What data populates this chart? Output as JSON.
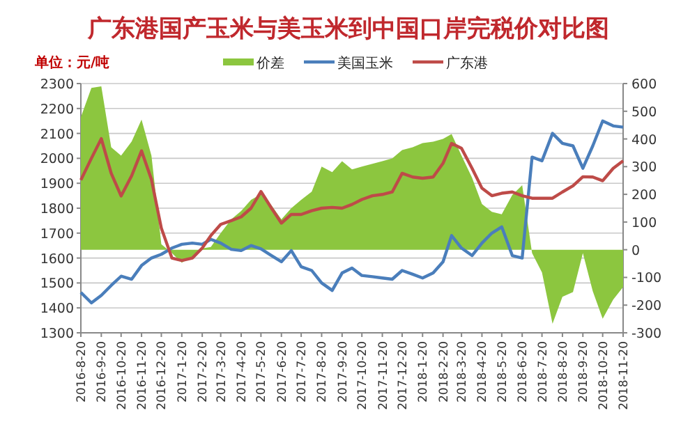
{
  "chart_data": {
    "type": "line",
    "title": "广东港国产玉米与美玉米到中国口岸完税价对比图",
    "ylabel": "单位：元/吨",
    "x": [
      "2016-08-20",
      "2016-09-05",
      "2016-09-20",
      "2016-10-05",
      "2016-10-20",
      "2016-11-05",
      "2016-11-20",
      "2016-12-05",
      "2016-12-20",
      "2017-01-05",
      "2017-01-20",
      "2017-02-05",
      "2017-02-20",
      "2017-03-05",
      "2017-03-20",
      "2017-04-05",
      "2017-04-20",
      "2017-05-05",
      "2017-05-20",
      "2017-06-05",
      "2017-06-20",
      "2017-07-05",
      "2017-07-20",
      "2017-08-05",
      "2017-08-20",
      "2017-09-05",
      "2017-09-20",
      "2017-10-05",
      "2017-10-20",
      "2017-11-05",
      "2017-11-20",
      "2017-12-05",
      "2017-12-20",
      "2018-01-05",
      "2018-01-20",
      "2018-02-05",
      "2018-02-20",
      "2018-03-05",
      "2018-03-20",
      "2018-04-05",
      "2018-04-20",
      "2018-05-05",
      "2018-05-20",
      "2018-06-05",
      "2018-06-20",
      "2018-07-05",
      "2018-07-20",
      "2018-08-05",
      "2018-08-20",
      "2018-09-05",
      "2018-09-20",
      "2018-10-05",
      "2018-10-20",
      "2018-11-05",
      "2018-11-20"
    ],
    "series": [
      {
        "name": "价差",
        "type": "area",
        "axis": "y2",
        "color": "#8cc63f",
        "values": [
          479,
          584,
          590,
          370,
          340,
          391,
          470,
          340,
          20,
          -12,
          -47,
          -25,
          5,
          10,
          60,
          110,
          140,
          180,
          200,
          160,
          110,
          150,
          180,
          210,
          300,
          280,
          320,
          290,
          300,
          310,
          320,
          330,
          360,
          370,
          385,
          390,
          400,
          418,
          340,
          260,
          165,
          137,
          128,
          198,
          233,
          -12,
          -82,
          -267,
          -170,
          -153,
          -12,
          -150,
          -249,
          -180,
          -135
        ]
      },
      {
        "name": "美国玉米",
        "type": "line",
        "color": "#4a7ebb",
        "values": [
          1462,
          1420,
          1450,
          1490,
          1527,
          1515,
          1570,
          1600,
          1615,
          1640,
          1655,
          1660,
          1655,
          1675,
          1660,
          1635,
          1630,
          1650,
          1637,
          1610,
          1585,
          1630,
          1565,
          1550,
          1500,
          1470,
          1540,
          1560,
          1530,
          1525,
          1520,
          1515,
          1550,
          1535,
          1520,
          1540,
          1585,
          1690,
          1640,
          1610,
          1660,
          1700,
          1725,
          1610,
          1600,
          2005,
          1990,
          2100,
          2060,
          2050,
          1960,
          2050,
          2150,
          2130,
          2125
        ]
      },
      {
        "name": "广东港",
        "type": "line",
        "color": "#be4b48",
        "values": [
          1913,
          2000,
          2079,
          1940,
          1849,
          1930,
          2030,
          1915,
          1720,
          1600,
          1590,
          1600,
          1640,
          1690,
          1735,
          1750,
          1765,
          1800,
          1867,
          1800,
          1740,
          1775,
          1775,
          1790,
          1800,
          1803,
          1800,
          1815,
          1835,
          1850,
          1855,
          1865,
          1940,
          1925,
          1920,
          1925,
          1980,
          2060,
          2040,
          1960,
          1880,
          1850,
          1860,
          1865,
          1850,
          1840,
          1840,
          1840,
          1865,
          1890,
          1926,
          1925,
          1910,
          1960,
          1990
        ]
      }
    ],
    "xlim": [
      "2016-08-20",
      "2018-11-20"
    ],
    "xticks": [
      {
        "value": "2016-08-20",
        "label": "2016-8-20"
      },
      {
        "value": "2016-09-20",
        "label": "2016-9-20"
      },
      {
        "value": "2016-10-20",
        "label": "2016-10-20"
      },
      {
        "value": "2016-11-20",
        "label": "2016-11-20"
      },
      {
        "value": "2016-12-20",
        "label": "2016-12-20"
      },
      {
        "value": "2017-01-20",
        "label": "2017-1-20"
      },
      {
        "value": "2017-02-20",
        "label": "2017-2-20"
      },
      {
        "value": "2017-03-20",
        "label": "2017-3-20"
      },
      {
        "value": "2017-04-20",
        "label": "2017-4-20"
      },
      {
        "value": "2017-05-20",
        "label": "2017-5-20"
      },
      {
        "value": "2017-06-20",
        "label": "2017-6-20"
      },
      {
        "value": "2017-07-20",
        "label": "2017-7-20"
      },
      {
        "value": "2017-08-20",
        "label": "2017-8-20"
      },
      {
        "value": "2017-09-20",
        "label": "2017-9-20"
      },
      {
        "value": "2017-10-20",
        "label": "2017-10-20"
      },
      {
        "value": "2017-11-20",
        "label": "2017-11-20"
      },
      {
        "value": "2017-12-20",
        "label": "2017-12-20"
      },
      {
        "value": "2018-01-20",
        "label": "2018-1-20"
      },
      {
        "value": "2018-02-20",
        "label": "2018-2-20"
      },
      {
        "value": "2018-03-20",
        "label": "2018-3-20"
      },
      {
        "value": "2018-04-20",
        "label": "2018-4-20"
      },
      {
        "value": "2018-05-20",
        "label": "2018-5-20"
      },
      {
        "value": "2018-06-20",
        "label": "2018-6-20"
      },
      {
        "value": "2018-07-20",
        "label": "2018-7-20"
      },
      {
        "value": "2018-08-20",
        "label": "2018-8-20"
      },
      {
        "value": "2018-09-20",
        "label": "2018-9-20"
      },
      {
        "value": "2018-10-20",
        "label": "2018-10-20"
      },
      {
        "value": "2018-11-20",
        "label": "2018-11-20"
      }
    ],
    "ylim": [
      1300,
      2300
    ],
    "yticks": [
      1300,
      1400,
      1500,
      1600,
      1700,
      1800,
      1900,
      2000,
      2100,
      2200,
      2300
    ],
    "y2lim": [
      -300,
      600
    ],
    "y2ticks": [
      -300,
      -200,
      -100,
      0,
      100,
      200,
      300,
      400,
      500,
      600
    ],
    "grid": "y",
    "legend": "top"
  }
}
